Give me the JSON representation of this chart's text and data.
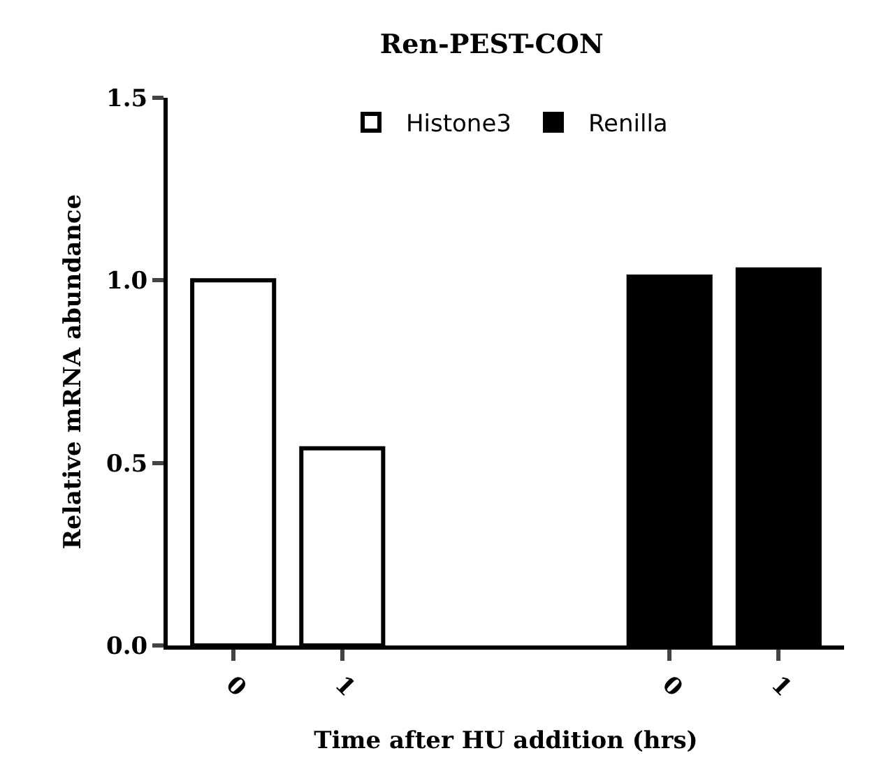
{
  "chart_data": {
    "type": "bar",
    "title": "Ren-PEST-CON",
    "xlabel": "Time after HU addition (hrs)",
    "ylabel": "Relative mRNA abundance",
    "categories": [
      "0",
      "1",
      null,
      null,
      "0",
      "1"
    ],
    "series": [
      {
        "name": "Histone3",
        "color": "#ffffff",
        "values": [
          1.0,
          0.54,
          null,
          null,
          null,
          null
        ]
      },
      {
        "name": "Renilla",
        "color": "#000000",
        "values": [
          null,
          null,
          null,
          null,
          1.01,
          1.03
        ]
      }
    ],
    "ylim": [
      0,
      1.5
    ],
    "yticks": [
      {
        "value": 0,
        "label": "0.0"
      },
      {
        "value": 0.5,
        "label": "0.5"
      },
      {
        "value": 1,
        "label": "1.0"
      },
      {
        "value": 1.5,
        "label": "1.5"
      }
    ],
    "grid": false,
    "legend": "top"
  }
}
